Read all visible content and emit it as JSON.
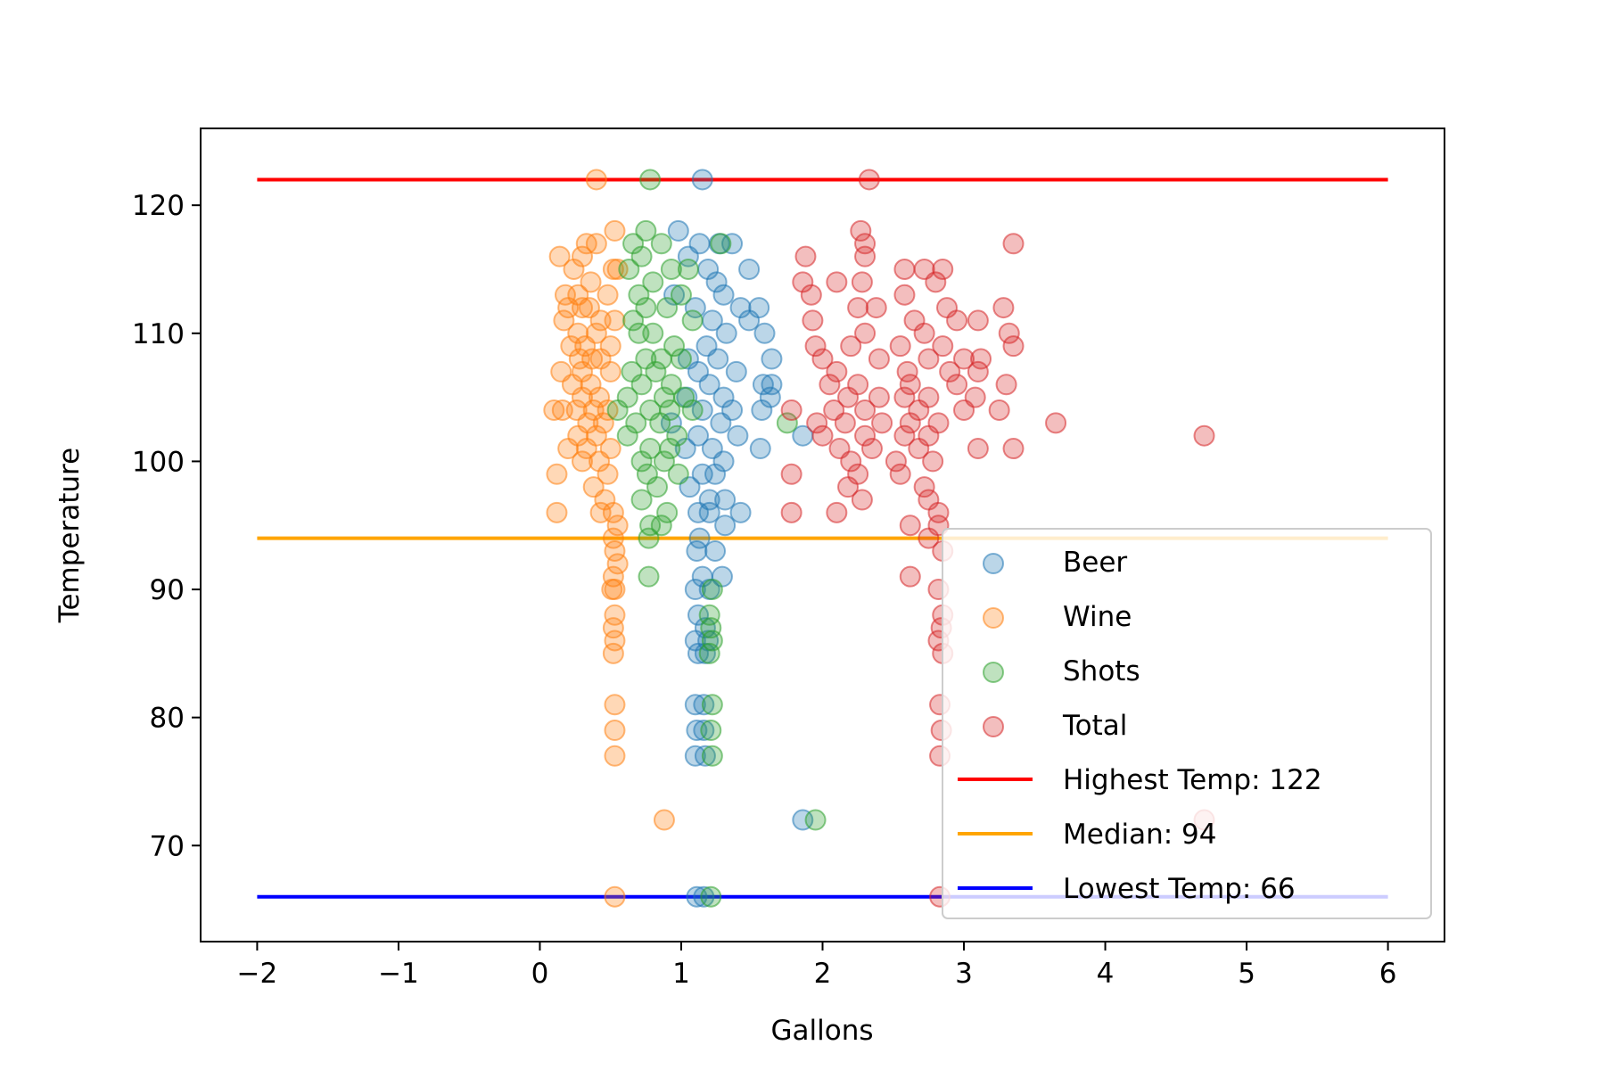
{
  "chart_data": {
    "type": "scatter",
    "title": "",
    "xlabel": "Gallons",
    "ylabel": "Temperature",
    "xlim": [
      -2.4,
      6.4
    ],
    "ylim": [
      62.5,
      126
    ],
    "xticks": [
      -2,
      -1,
      0,
      1,
      2,
      3,
      4,
      5,
      6
    ],
    "xtick_labels": [
      "−2",
      "−1",
      "0",
      "1",
      "2",
      "3",
      "4",
      "5",
      "6"
    ],
    "yticks": [
      70,
      80,
      90,
      100,
      110,
      120
    ],
    "ytick_labels": [
      "70",
      "80",
      "90",
      "100",
      "110",
      "120"
    ],
    "grid": false,
    "legend_position": "lower-right",
    "series": [
      {
        "name": "Beer",
        "color": "#1f77b4",
        "points": [
          [
            1.15,
            122
          ],
          [
            0.98,
            118
          ],
          [
            1.13,
            117
          ],
          [
            1.27,
            117
          ],
          [
            1.36,
            117
          ],
          [
            1.05,
            116
          ],
          [
            1.48,
            115
          ],
          [
            1.19,
            115
          ],
          [
            1.25,
            114
          ],
          [
            0.95,
            113
          ],
          [
            1.3,
            113
          ],
          [
            1.1,
            112
          ],
          [
            1.42,
            112
          ],
          [
            1.55,
            112
          ],
          [
            1.22,
            111
          ],
          [
            1.48,
            111
          ],
          [
            1.59,
            110
          ],
          [
            1.32,
            110
          ],
          [
            1.18,
            109
          ],
          [
            1.05,
            108
          ],
          [
            1.64,
            108
          ],
          [
            1.26,
            108
          ],
          [
            1.12,
            107
          ],
          [
            1.39,
            107
          ],
          [
            1.64,
            106
          ],
          [
            1.58,
            106
          ],
          [
            1.2,
            106
          ],
          [
            1.04,
            105
          ],
          [
            1.63,
            105
          ],
          [
            1.3,
            105
          ],
          [
            1.15,
            104
          ],
          [
            1.57,
            104
          ],
          [
            1.36,
            104
          ],
          [
            0.93,
            103
          ],
          [
            1.28,
            103
          ],
          [
            1.12,
            102
          ],
          [
            1.86,
            102
          ],
          [
            1.4,
            102
          ],
          [
            1.56,
            101
          ],
          [
            1.22,
            101
          ],
          [
            1.03,
            101
          ],
          [
            1.3,
            100
          ],
          [
            1.15,
            99
          ],
          [
            1.24,
            99
          ],
          [
            1.06,
            98
          ],
          [
            1.2,
            97
          ],
          [
            1.31,
            97
          ],
          [
            1.12,
            96
          ],
          [
            1.42,
            96
          ],
          [
            1.2,
            96
          ],
          [
            1.31,
            95
          ],
          [
            1.13,
            94
          ],
          [
            1.24,
            93
          ],
          [
            1.11,
            93
          ],
          [
            1.29,
            91
          ],
          [
            1.15,
            91
          ],
          [
            1.1,
            90
          ],
          [
            1.2,
            90
          ],
          [
            1.12,
            88
          ],
          [
            1.17,
            87
          ],
          [
            1.1,
            86
          ],
          [
            1.19,
            86
          ],
          [
            1.12,
            85
          ],
          [
            1.17,
            85
          ],
          [
            1.1,
            81
          ],
          [
            1.16,
            81
          ],
          [
            1.11,
            79
          ],
          [
            1.16,
            79
          ],
          [
            1.1,
            77
          ],
          [
            1.17,
            77
          ],
          [
            1.86,
            72
          ],
          [
            1.11,
            66
          ],
          [
            1.16,
            66
          ]
        ]
      },
      {
        "name": "Wine",
        "color": "#ff7f0e",
        "points": [
          [
            0.4,
            122
          ],
          [
            0.53,
            118
          ],
          [
            0.33,
            117
          ],
          [
            0.4,
            117
          ],
          [
            0.14,
            116
          ],
          [
            0.3,
            116
          ],
          [
            0.52,
            115
          ],
          [
            0.24,
            115
          ],
          [
            0.55,
            115
          ],
          [
            0.36,
            114
          ],
          [
            0.18,
            113
          ],
          [
            0.27,
            113
          ],
          [
            0.48,
            113
          ],
          [
            0.35,
            112
          ],
          [
            0.2,
            112
          ],
          [
            0.3,
            112
          ],
          [
            0.43,
            111
          ],
          [
            0.17,
            111
          ],
          [
            0.53,
            111
          ],
          [
            0.27,
            110
          ],
          [
            0.4,
            110
          ],
          [
            0.32,
            109
          ],
          [
            0.22,
            109
          ],
          [
            0.5,
            109
          ],
          [
            0.37,
            108
          ],
          [
            0.28,
            108
          ],
          [
            0.43,
            108
          ],
          [
            0.15,
            107
          ],
          [
            0.3,
            107
          ],
          [
            0.5,
            107
          ],
          [
            0.23,
            106
          ],
          [
            0.36,
            106
          ],
          [
            0.42,
            105
          ],
          [
            0.3,
            105
          ],
          [
            0.1,
            104
          ],
          [
            0.26,
            104
          ],
          [
            0.38,
            104
          ],
          [
            0.48,
            104
          ],
          [
            0.16,
            104
          ],
          [
            0.34,
            103
          ],
          [
            0.45,
            103
          ],
          [
            0.27,
            102
          ],
          [
            0.4,
            102
          ],
          [
            0.2,
            101
          ],
          [
            0.33,
            101
          ],
          [
            0.5,
            101
          ],
          [
            0.42,
            100
          ],
          [
            0.3,
            100
          ],
          [
            0.48,
            99
          ],
          [
            0.12,
            99
          ],
          [
            0.38,
            98
          ],
          [
            0.46,
            97
          ],
          [
            0.12,
            96
          ],
          [
            0.43,
            96
          ],
          [
            0.52,
            96
          ],
          [
            0.55,
            95
          ],
          [
            0.52,
            94
          ],
          [
            0.53,
            93
          ],
          [
            0.55,
            92
          ],
          [
            0.52,
            91
          ],
          [
            0.53,
            90
          ],
          [
            0.51,
            90
          ],
          [
            0.53,
            88
          ],
          [
            0.52,
            87
          ],
          [
            0.53,
            86
          ],
          [
            0.52,
            85
          ],
          [
            0.53,
            81
          ],
          [
            0.53,
            79
          ],
          [
            0.53,
            77
          ],
          [
            0.88,
            72
          ],
          [
            0.53,
            66
          ]
        ]
      },
      {
        "name": "Shots",
        "color": "#2ca02c",
        "points": [
          [
            0.78,
            122
          ],
          [
            0.75,
            118
          ],
          [
            0.66,
            117
          ],
          [
            0.86,
            117
          ],
          [
            1.28,
            117
          ],
          [
            0.72,
            116
          ],
          [
            0.93,
            115
          ],
          [
            0.63,
            115
          ],
          [
            1.05,
            115
          ],
          [
            0.8,
            114
          ],
          [
            0.7,
            113
          ],
          [
            1.0,
            113
          ],
          [
            0.75,
            112
          ],
          [
            0.9,
            112
          ],
          [
            0.66,
            111
          ],
          [
            1.08,
            111
          ],
          [
            0.8,
            110
          ],
          [
            0.7,
            110
          ],
          [
            0.95,
            109
          ],
          [
            0.75,
            108
          ],
          [
            0.86,
            108
          ],
          [
            1.0,
            108
          ],
          [
            0.65,
            107
          ],
          [
            0.82,
            107
          ],
          [
            0.93,
            106
          ],
          [
            0.72,
            106
          ],
          [
            0.88,
            105
          ],
          [
            0.62,
            105
          ],
          [
            1.02,
            105
          ],
          [
            0.55,
            104
          ],
          [
            0.78,
            104
          ],
          [
            0.92,
            104
          ],
          [
            1.08,
            104
          ],
          [
            0.68,
            103
          ],
          [
            1.75,
            103
          ],
          [
            0.85,
            103
          ],
          [
            0.97,
            102
          ],
          [
            0.62,
            102
          ],
          [
            0.78,
            101
          ],
          [
            0.92,
            101
          ],
          [
            0.72,
            100
          ],
          [
            0.88,
            100
          ],
          [
            0.76,
            99
          ],
          [
            0.98,
            99
          ],
          [
            0.83,
            98
          ],
          [
            0.72,
            97
          ],
          [
            0.9,
            96
          ],
          [
            0.78,
            95
          ],
          [
            0.86,
            95
          ],
          [
            0.77,
            94
          ],
          [
            0.77,
            91
          ],
          [
            1.22,
            90
          ],
          [
            1.2,
            88
          ],
          [
            1.21,
            87
          ],
          [
            1.22,
            86
          ],
          [
            1.2,
            85
          ],
          [
            1.22,
            81
          ],
          [
            1.21,
            79
          ],
          [
            1.22,
            77
          ],
          [
            1.95,
            72
          ],
          [
            1.21,
            66
          ]
        ]
      },
      {
        "name": "Total",
        "color": "#d62728",
        "points": [
          [
            2.33,
            122
          ],
          [
            2.27,
            118
          ],
          [
            2.3,
            117
          ],
          [
            3.35,
            117
          ],
          [
            1.88,
            116
          ],
          [
            2.3,
            116
          ],
          [
            2.58,
            115
          ],
          [
            2.72,
            115
          ],
          [
            2.85,
            115
          ],
          [
            1.86,
            114
          ],
          [
            2.1,
            114
          ],
          [
            2.28,
            114
          ],
          [
            2.8,
            114
          ],
          [
            1.92,
            113
          ],
          [
            2.58,
            113
          ],
          [
            2.25,
            112
          ],
          [
            2.38,
            112
          ],
          [
            2.88,
            112
          ],
          [
            3.28,
            112
          ],
          [
            1.93,
            111
          ],
          [
            2.65,
            111
          ],
          [
            2.95,
            111
          ],
          [
            3.1,
            111
          ],
          [
            2.3,
            110
          ],
          [
            2.72,
            110
          ],
          [
            3.32,
            110
          ],
          [
            1.95,
            109
          ],
          [
            2.2,
            109
          ],
          [
            2.55,
            109
          ],
          [
            2.85,
            109
          ],
          [
            3.35,
            109
          ],
          [
            2.0,
            108
          ],
          [
            2.4,
            108
          ],
          [
            2.75,
            108
          ],
          [
            3.0,
            108
          ],
          [
            3.12,
            108
          ],
          [
            2.1,
            107
          ],
          [
            2.6,
            107
          ],
          [
            2.9,
            107
          ],
          [
            3.1,
            107
          ],
          [
            2.05,
            106
          ],
          [
            2.25,
            106
          ],
          [
            2.62,
            106
          ],
          [
            2.95,
            106
          ],
          [
            3.3,
            106
          ],
          [
            2.18,
            105
          ],
          [
            2.4,
            105
          ],
          [
            2.58,
            105
          ],
          [
            2.75,
            105
          ],
          [
            3.08,
            105
          ],
          [
            1.78,
            104
          ],
          [
            2.08,
            104
          ],
          [
            2.3,
            104
          ],
          [
            2.68,
            104
          ],
          [
            3.0,
            104
          ],
          [
            3.25,
            104
          ],
          [
            1.96,
            103
          ],
          [
            2.16,
            103
          ],
          [
            2.42,
            103
          ],
          [
            2.62,
            103
          ],
          [
            2.82,
            103
          ],
          [
            3.65,
            103
          ],
          [
            2.0,
            102
          ],
          [
            2.3,
            102
          ],
          [
            2.58,
            102
          ],
          [
            2.75,
            102
          ],
          [
            4.7,
            102
          ],
          [
            2.12,
            101
          ],
          [
            2.35,
            101
          ],
          [
            2.68,
            101
          ],
          [
            3.1,
            101
          ],
          [
            3.35,
            101
          ],
          [
            2.2,
            100
          ],
          [
            2.52,
            100
          ],
          [
            2.78,
            100
          ],
          [
            2.25,
            99
          ],
          [
            1.78,
            99
          ],
          [
            2.55,
            99
          ],
          [
            2.72,
            98
          ],
          [
            2.18,
            98
          ],
          [
            2.28,
            97
          ],
          [
            2.75,
            97
          ],
          [
            1.78,
            96
          ],
          [
            2.1,
            96
          ],
          [
            2.82,
            96
          ],
          [
            2.62,
            95
          ],
          [
            2.82,
            95
          ],
          [
            2.75,
            94
          ],
          [
            2.85,
            93
          ],
          [
            2.62,
            91
          ],
          [
            2.82,
            90
          ],
          [
            2.85,
            88
          ],
          [
            2.84,
            87
          ],
          [
            2.82,
            86
          ],
          [
            2.85,
            85
          ],
          [
            2.83,
            81
          ],
          [
            2.84,
            79
          ],
          [
            2.83,
            77
          ],
          [
            4.7,
            72
          ],
          [
            2.83,
            66
          ]
        ]
      }
    ],
    "lines": [
      {
        "name": "Highest Temp: 122",
        "color": "#ff0000",
        "y": 122,
        "x": [
          -2,
          6
        ]
      },
      {
        "name": "Median: 94",
        "color": "#ffa500",
        "y": 94,
        "x": [
          -2,
          6
        ]
      },
      {
        "name": "Lowest Temp: 66",
        "color": "#0000ff",
        "y": 66,
        "x": [
          -2,
          6
        ]
      }
    ]
  }
}
